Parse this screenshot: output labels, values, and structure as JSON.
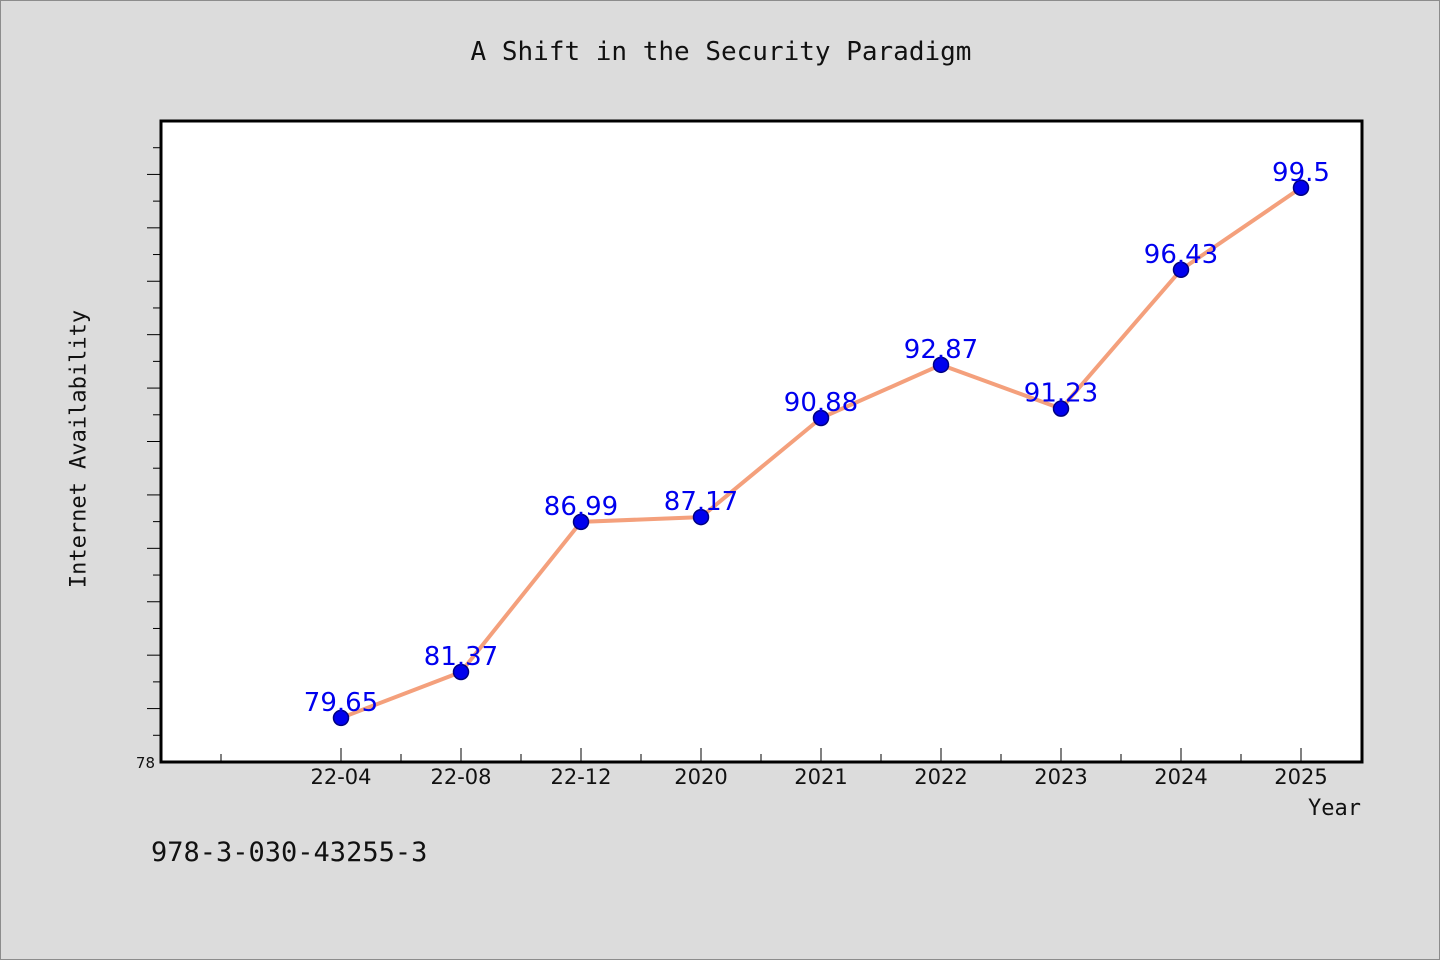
{
  "chart_data": {
    "type": "line",
    "title": "A Shift in the Security Paradigm",
    "xlabel": "Year",
    "ylabel": "Internet Availability",
    "categories": [
      "22-04",
      "22-08",
      "22-12",
      "2020",
      "2021",
      "2022",
      "2023",
      "2024",
      "2025"
    ],
    "series": [
      {
        "values": [
          79.65,
          81.37,
          86.99,
          87.17,
          90.88,
          92.87,
          91.23,
          96.43,
          99.5
        ]
      }
    ],
    "data_labels": [
      "79.65",
      "81.37",
      "86.99",
      "87.17",
      "90.88",
      "92.87",
      "91.23",
      "96.43",
      "99.5"
    ],
    "ylim": [
      78,
      102
    ],
    "y_tick_labels": [
      "78"
    ],
    "grid": false,
    "colors": {
      "line": "#f4a07c",
      "marker": "#0000ee",
      "marker_edge": "#000080",
      "label": "#0000ee",
      "background": "#dcdcdc",
      "plot_background": "#ffffff"
    }
  },
  "footnote": "978-3-030-43255-3"
}
